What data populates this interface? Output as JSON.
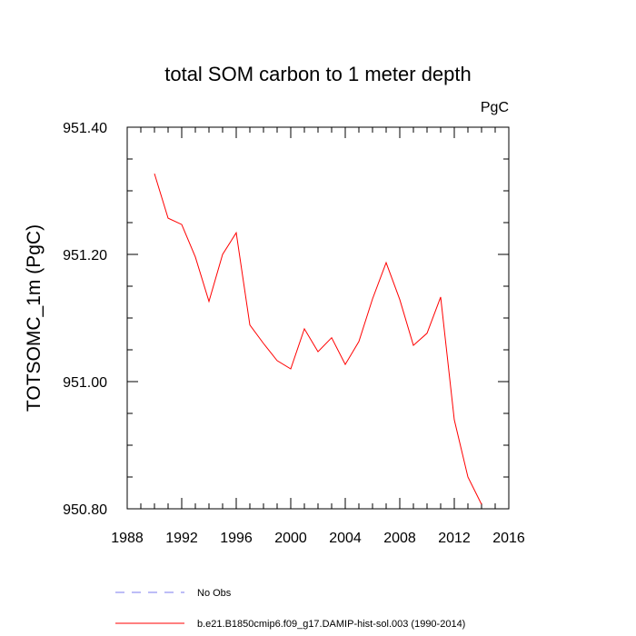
{
  "chart_data": {
    "type": "line",
    "title": "total SOM carbon to 1 meter depth",
    "units_label": "PgC",
    "ylabel": "TOTSOMC_1m  (PgC)",
    "xlabel": "",
    "xlim": [
      1988,
      2016
    ],
    "ylim": [
      950.8,
      951.4
    ],
    "x_ticks": [
      1988,
      1992,
      1996,
      2000,
      2004,
      2008,
      2012,
      2016
    ],
    "x_tick_labels": [
      "1988",
      "1992",
      "1996",
      "2000",
      "2004",
      "2008",
      "2012",
      "2016"
    ],
    "y_ticks": [
      950.8,
      951.0,
      951.2,
      951.4
    ],
    "y_tick_labels": [
      "950.80",
      "951.00",
      "951.20",
      "951.40"
    ],
    "x_minor_step": 1,
    "y_minor_step": 0.05,
    "grid": false,
    "legend_position": "bottom-left",
    "series": [
      {
        "name": "No Obs",
        "color": "#7b7bef",
        "dashed": true,
        "x": [],
        "y": []
      },
      {
        "name": "b.e21.B1850cmip6.f09_g17.DAMIP-hist-sol.003 (1990-2014)",
        "color": "#ff0000",
        "dashed": false,
        "x": [
          1990,
          1991,
          1992,
          1993,
          1994,
          1995,
          1996,
          1997,
          1998,
          1999,
          2000,
          2001,
          2002,
          2003,
          2004,
          2005,
          2006,
          2007,
          2008,
          2009,
          2010,
          2011,
          2012,
          2013,
          2014
        ],
        "y": [
          951.327,
          951.257,
          951.247,
          951.196,
          951.126,
          951.2,
          951.234,
          951.089,
          951.06,
          951.033,
          951.02,
          951.083,
          951.047,
          951.069,
          951.027,
          951.063,
          951.13,
          951.187,
          951.129,
          951.057,
          951.076,
          951.133,
          950.94,
          950.85,
          950.807
        ]
      }
    ]
  }
}
